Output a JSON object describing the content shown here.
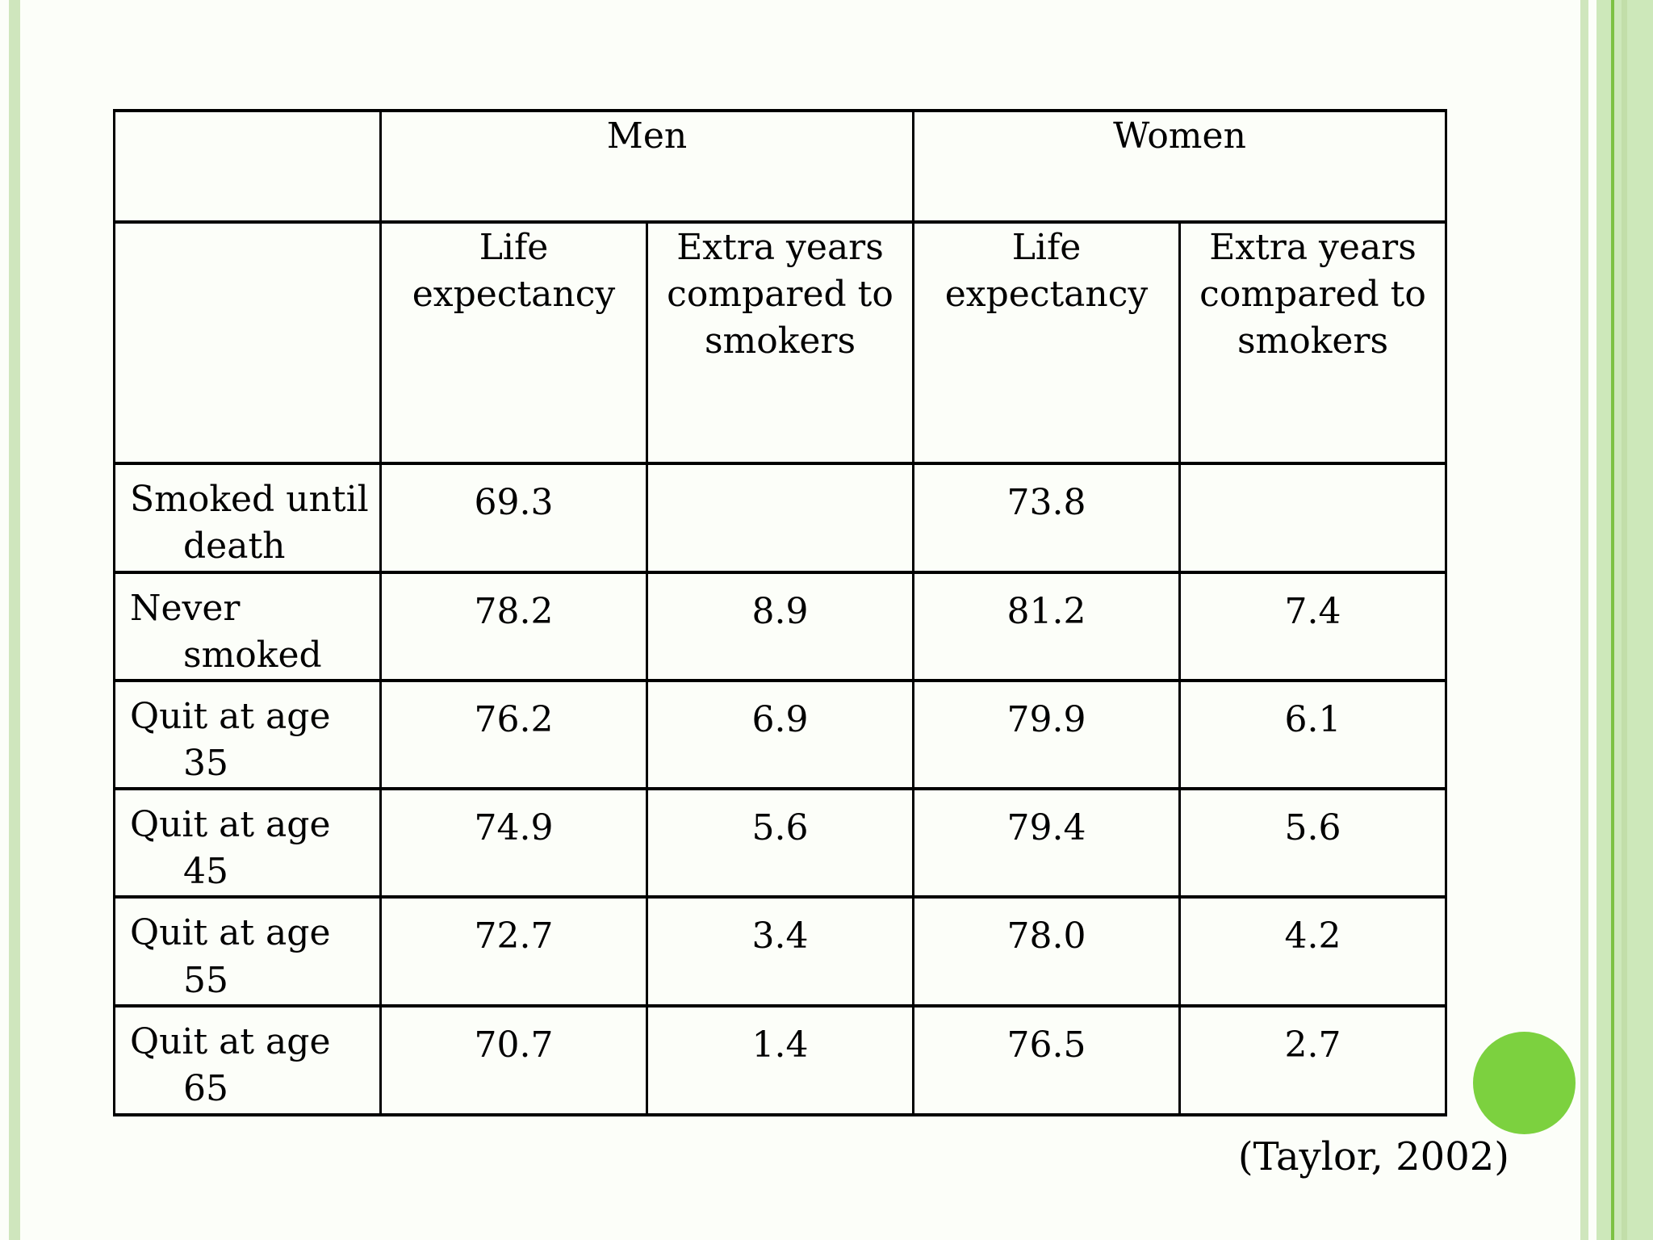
{
  "slide": {
    "citation": "(Taylor, 2002)"
  },
  "table": {
    "group_headers": [
      {
        "label": "",
        "span": 1
      },
      {
        "label": "Men",
        "span": 2
      },
      {
        "label": "Women",
        "span": 2
      }
    ],
    "column_headers": [
      "",
      "Life\nexpectancy",
      "Extra years\ncompared to\nsmokers",
      "Life\nexpectancy",
      "Extra years\ncompared to\nsmokers"
    ],
    "rows": [
      {
        "label": "Smoked until\ndeath",
        "values": [
          "69.3",
          "",
          "73.8",
          ""
        ]
      },
      {
        "label": "Never\nsmoked",
        "values": [
          "78.2",
          "8.9",
          "81.2",
          "7.4"
        ]
      },
      {
        "label": "Quit at age\n35",
        "values": [
          "76.2",
          "6.9",
          "79.9",
          "6.1"
        ]
      },
      {
        "label": "Quit at age\n45",
        "values": [
          "74.9",
          "5.6",
          "79.4",
          "5.6"
        ]
      },
      {
        "label": "Quit at age\n55",
        "values": [
          "72.7",
          "3.4",
          "78.0",
          "4.2"
        ]
      },
      {
        "label": "Quit at age\n65",
        "values": [
          "70.7",
          "1.4",
          "76.5",
          "2.7"
        ]
      }
    ]
  },
  "chart_data": {
    "type": "table",
    "title": "Life expectancy by smoking status (Taylor, 2002)",
    "column_groups": [
      "",
      "Men",
      "Men",
      "Women",
      "Women"
    ],
    "columns": [
      "",
      "Life expectancy",
      "Extra years compared to smokers",
      "Life expectancy",
      "Extra years compared to smokers"
    ],
    "rows": [
      [
        "Smoked until death",
        69.3,
        null,
        73.8,
        null
      ],
      [
        "Never smoked",
        78.2,
        8.9,
        81.2,
        7.4
      ],
      [
        "Quit at age 35",
        76.2,
        6.9,
        79.9,
        6.1
      ],
      [
        "Quit at age 45",
        74.9,
        5.6,
        79.4,
        5.6
      ],
      [
        "Quit at age 55",
        72.7,
        3.4,
        78.0,
        4.2
      ],
      [
        "Quit at age 65",
        70.7,
        1.4,
        76.5,
        2.7
      ]
    ]
  },
  "colors": {
    "background": "#FCFEF9",
    "stripe_light_green": "#CFE6BD",
    "band_green": "#CDE8BA",
    "band_green_dark": "#C2DEA9",
    "accent_line_green": "#7CC142",
    "circle_green": "#7CD13F",
    "table_border": "#000000",
    "text": "#000000"
  }
}
